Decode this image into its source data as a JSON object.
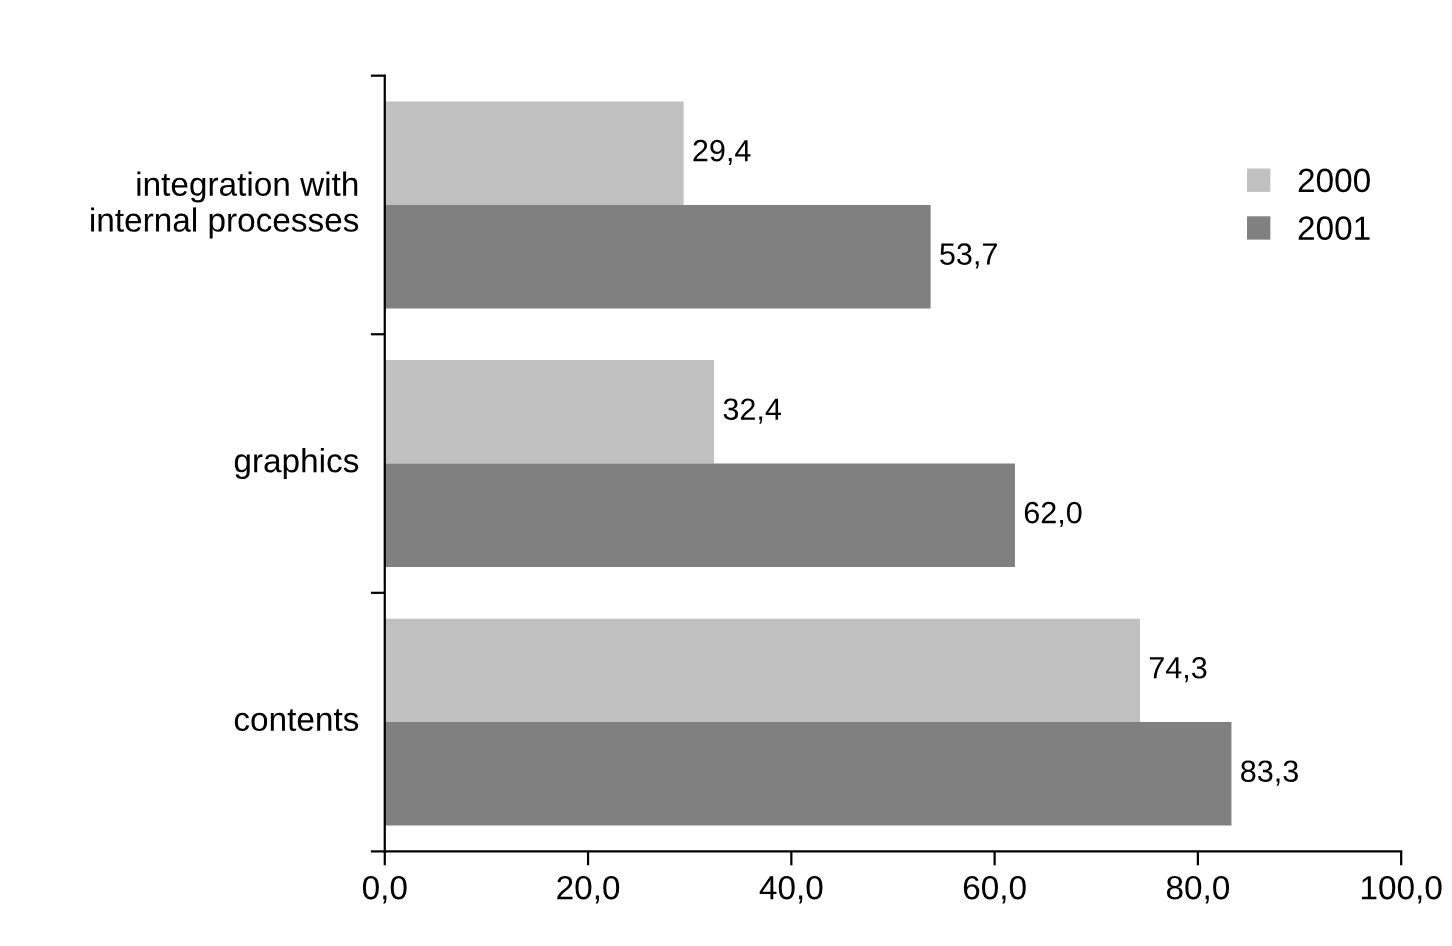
{
  "chart_data": {
    "type": "bar",
    "orientation": "horizontal",
    "categories": [
      "integration with\ninternal processes",
      "graphics",
      "contents"
    ],
    "series": [
      {
        "name": "2000",
        "color": "#c0c0c0",
        "values": [
          29.4,
          32.4,
          74.3
        ],
        "value_labels": [
          "29,4",
          "32,4",
          "74,3"
        ]
      },
      {
        "name": "2001",
        "color": "#808080",
        "values": [
          53.7,
          62.0,
          83.3
        ],
        "value_labels": [
          "53,7",
          "62,0",
          "83,3"
        ]
      }
    ],
    "xlim": [
      0,
      100
    ],
    "xticks": [
      {
        "value": 0,
        "label": "0,0"
      },
      {
        "value": 20,
        "label": "20,0"
      },
      {
        "value": 40,
        "label": "40,0"
      },
      {
        "value": 60,
        "label": "60,0"
      },
      {
        "value": 80,
        "label": "80,0"
      },
      {
        "value": 100,
        "label": "100,0"
      }
    ],
    "legend": "top right",
    "grid": false
  }
}
